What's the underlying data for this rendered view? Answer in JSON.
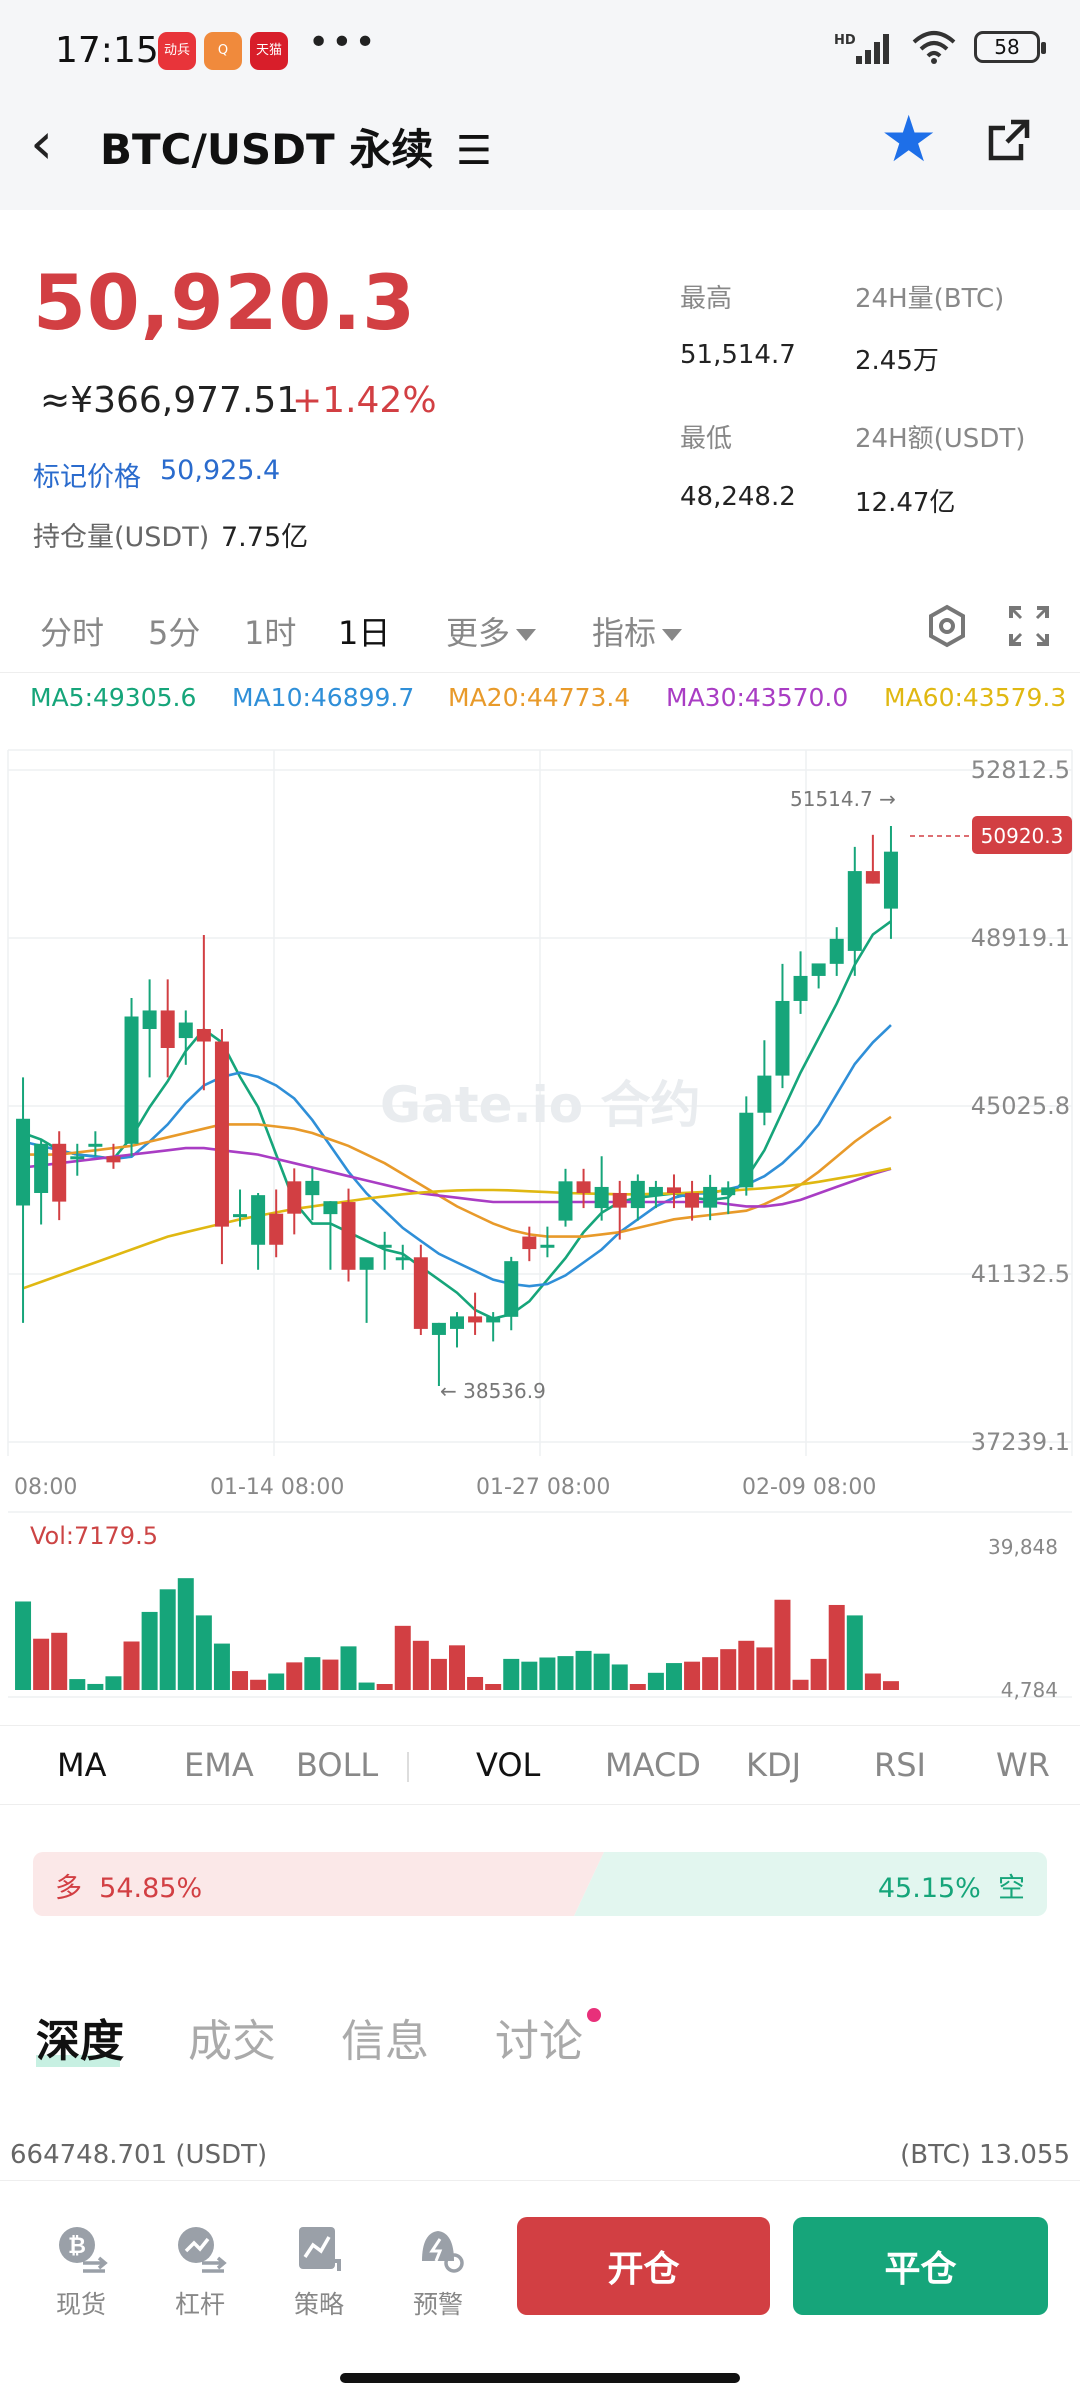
{
  "status_bar": {
    "time": "17:15",
    "apps": [
      {
        "label": "动兵",
        "color": "#e8343a"
      },
      {
        "label": "Q",
        "color": "#f08a3c"
      },
      {
        "label": "天猫",
        "color": "#d81e2a"
      }
    ],
    "more": "•••",
    "network": "HD",
    "battery": "58"
  },
  "header": {
    "title": "BTC/USDT 永续",
    "menu_glyph": "☰",
    "favorite": true
  },
  "ticker": {
    "last_price": "50,920.3",
    "cny_price": "≈¥366,977.51",
    "change_pct": "+1.42%",
    "mark_price_label": "标记价格",
    "mark_price": "50,925.4",
    "open_interest_label": "持仓量(USDT)",
    "open_interest": "7.75亿",
    "high_label": "最高",
    "high": "51,514.7",
    "low_label": "最低",
    "low": "48,248.2",
    "vol_btc_label": "24H量(BTC)",
    "vol_btc": "2.45万",
    "vol_usdt_label": "24H额(USDT)",
    "vol_usdt": "12.47亿"
  },
  "intervals": {
    "items": [
      "分时",
      "5分",
      "1时",
      "1日"
    ],
    "active": "1日",
    "more": "更多",
    "indicators": "指标"
  },
  "ma_values": [
    {
      "label": "MA5:49305.6",
      "color": "#16a57a"
    },
    {
      "label": "MA10:46899.7",
      "color": "#2f8fd8"
    },
    {
      "label": "MA20:44773.4",
      "color": "#e89a2a"
    },
    {
      "label": "MA30:43570.0",
      "color": "#a93dc4"
    },
    {
      "label": "MA60:43579.3",
      "color": "#e0b812"
    }
  ],
  "chart": {
    "watermark": "Gate.io 合约",
    "current_price_tag": "50920.3",
    "high_annotation": "51514.7 →",
    "low_annotation": "← 38536.9",
    "vol_label": "Vol:7179.5",
    "vol_max": "39,848",
    "vol_min": "4,784"
  },
  "chart_data": {
    "type": "candlestick",
    "ylim": [
      37239.1,
      52812.5
    ],
    "y_ticks": [
      "52812.5",
      "48919.1",
      "45025.8",
      "41132.5",
      "37239.1"
    ],
    "x_ticks": [
      "08:00",
      "01-14 08:00",
      "01-27 08:00",
      "02-09 08:00"
    ],
    "candles": [
      {
        "o": 42720,
        "h": 45690,
        "l": 40000,
        "c": 44730
      },
      {
        "o": 43010,
        "h": 44270,
        "l": 42280,
        "c": 44150
      },
      {
        "o": 44150,
        "h": 44440,
        "l": 42380,
        "c": 42810
      },
      {
        "o": 43860,
        "h": 44150,
        "l": 43410,
        "c": 43860
      },
      {
        "o": 44150,
        "h": 44440,
        "l": 43860,
        "c": 44150
      },
      {
        "o": 43860,
        "h": 44150,
        "l": 43570,
        "c": 43720
      },
      {
        "o": 44150,
        "h": 47530,
        "l": 43860,
        "c": 47100
      },
      {
        "o": 46810,
        "h": 47960,
        "l": 45690,
        "c": 47240
      },
      {
        "o": 47240,
        "h": 47960,
        "l": 45690,
        "c": 46370
      },
      {
        "o": 46600,
        "h": 47240,
        "l": 45980,
        "c": 46960
      },
      {
        "o": 46810,
        "h": 48990,
        "l": 45390,
        "c": 46520
      },
      {
        "o": 46520,
        "h": 46810,
        "l": 41360,
        "c": 42230
      },
      {
        "o": 42520,
        "h": 43090,
        "l": 42230,
        "c": 42520
      },
      {
        "o": 41810,
        "h": 43010,
        "l": 41230,
        "c": 42960
      },
      {
        "o": 42530,
        "h": 43090,
        "l": 41520,
        "c": 41810
      },
      {
        "o": 43280,
        "h": 43580,
        "l": 42050,
        "c": 42530
      },
      {
        "o": 42960,
        "h": 43580,
        "l": 42380,
        "c": 43290
      },
      {
        "o": 42520,
        "h": 42820,
        "l": 41230,
        "c": 42820
      },
      {
        "o": 42800,
        "h": 43110,
        "l": 40960,
        "c": 41230
      },
      {
        "o": 41230,
        "h": 41510,
        "l": 40000,
        "c": 41520
      },
      {
        "o": 41810,
        "h": 42110,
        "l": 41230,
        "c": 41810
      },
      {
        "o": 41520,
        "h": 41810,
        "l": 41230,
        "c": 41520
      },
      {
        "o": 41520,
        "h": 41810,
        "l": 39720,
        "c": 39860
      },
      {
        "o": 39720,
        "h": 40000,
        "l": 38537,
        "c": 40000
      },
      {
        "o": 39860,
        "h": 40250,
        "l": 39430,
        "c": 40150
      },
      {
        "o": 40150,
        "h": 40700,
        "l": 39720,
        "c": 40010
      },
      {
        "o": 40010,
        "h": 40250,
        "l": 39570,
        "c": 40140
      },
      {
        "o": 40140,
        "h": 41530,
        "l": 39830,
        "c": 41430
      },
      {
        "o": 42000,
        "h": 42230,
        "l": 41430,
        "c": 41710
      },
      {
        "o": 41810,
        "h": 42230,
        "l": 41520,
        "c": 41810
      },
      {
        "o": 42370,
        "h": 43570,
        "l": 42230,
        "c": 43280
      },
      {
        "o": 43280,
        "h": 43570,
        "l": 42660,
        "c": 43010
      },
      {
        "o": 42660,
        "h": 43860,
        "l": 42370,
        "c": 43150
      },
      {
        "o": 43010,
        "h": 43290,
        "l": 41930,
        "c": 42670
      },
      {
        "o": 42660,
        "h": 43440,
        "l": 42370,
        "c": 43290
      },
      {
        "o": 42950,
        "h": 43290,
        "l": 42660,
        "c": 43150
      },
      {
        "o": 43140,
        "h": 43440,
        "l": 42660,
        "c": 43010
      },
      {
        "o": 43010,
        "h": 43290,
        "l": 42370,
        "c": 42670
      },
      {
        "o": 42670,
        "h": 43430,
        "l": 42380,
        "c": 43150
      },
      {
        "o": 42960,
        "h": 43280,
        "l": 42520,
        "c": 43140
      },
      {
        "o": 43140,
        "h": 45250,
        "l": 42950,
        "c": 44870
      },
      {
        "o": 44870,
        "h": 46550,
        "l": 44580,
        "c": 45730
      },
      {
        "o": 45730,
        "h": 48320,
        "l": 45440,
        "c": 47460
      },
      {
        "o": 47460,
        "h": 48610,
        "l": 47160,
        "c": 48040
      },
      {
        "o": 48040,
        "h": 48320,
        "l": 47750,
        "c": 48330
      },
      {
        "o": 48320,
        "h": 49170,
        "l": 48040,
        "c": 48900
      },
      {
        "o": 48620,
        "h": 51030,
        "l": 48040,
        "c": 50470
      },
      {
        "o": 50470,
        "h": 51310,
        "l": 50180,
        "c": 50180
      },
      {
        "o": 49600,
        "h": 51515,
        "l": 48900,
        "c": 50920
      }
    ],
    "ma_series": [
      {
        "name": "MA5",
        "color": "#16a57a",
        "values": [
          44400,
          44250,
          44000,
          43900,
          43860,
          43800,
          44300,
          45000,
          45600,
          46300,
          46800,
          46500,
          45700,
          45000,
          43900,
          42800,
          42300,
          42300,
          42100,
          41900,
          41700,
          41600,
          41300,
          41000,
          40700,
          40300,
          40100,
          40200,
          40500,
          41000,
          41500,
          42100,
          42550,
          42800,
          42900,
          42950,
          43000,
          42900,
          42850,
          42900,
          43350,
          44000,
          44900,
          45800,
          46600,
          47400,
          48300,
          49000,
          49306
        ]
      },
      {
        "name": "MA10",
        "color": "#2f8fd8",
        "values": [
          44200,
          44100,
          44000,
          43900,
          43850,
          43800,
          43850,
          44200,
          44600,
          45100,
          45500,
          45700,
          45800,
          45700,
          45500,
          45200,
          44700,
          44100,
          43500,
          43000,
          42600,
          42200,
          41900,
          41600,
          41400,
          41200,
          41000,
          40900,
          40850,
          40900,
          41100,
          41400,
          41700,
          42100,
          42400,
          42700,
          42900,
          43000,
          43000,
          43100,
          43200,
          43400,
          43700,
          44100,
          44600,
          45300,
          46000,
          46500,
          46900
        ]
      },
      {
        "name": "MA20",
        "color": "#e89a2a",
        "values": [
          43900,
          43900,
          43900,
          43950,
          44000,
          44050,
          44100,
          44200,
          44300,
          44400,
          44500,
          44600,
          44600,
          44600,
          44550,
          44500,
          44400,
          44250,
          44100,
          43900,
          43700,
          43450,
          43200,
          42950,
          42700,
          42500,
          42300,
          42150,
          42050,
          42000,
          42000,
          42000,
          42050,
          42100,
          42200,
          42300,
          42400,
          42450,
          42500,
          42550,
          42600,
          42750,
          42950,
          43200,
          43500,
          43850,
          44200,
          44500,
          44773
        ]
      },
      {
        "name": "MA30",
        "color": "#a93dc4",
        "values": [
          43600,
          43650,
          43700,
          43750,
          43800,
          43850,
          43900,
          43950,
          44000,
          44050,
          44050,
          44000,
          43950,
          43900,
          43800,
          43700,
          43600,
          43500,
          43400,
          43300,
          43200,
          43100,
          43000,
          42950,
          42900,
          42850,
          42800,
          42800,
          42800,
          42800,
          42800,
          42800,
          42800,
          42800,
          42800,
          42800,
          42800,
          42800,
          42800,
          42750,
          42700,
          42700,
          42750,
          42850,
          43000,
          43150,
          43300,
          43450,
          43570
        ]
      },
      {
        "name": "MA60",
        "color": "#e0b812",
        "values": [
          40800,
          40950,
          41100,
          41250,
          41400,
          41550,
          41700,
          41850,
          42000,
          42100,
          42200,
          42300,
          42400,
          42480,
          42560,
          42640,
          42700,
          42760,
          42820,
          42880,
          42930,
          42980,
          43020,
          43050,
          43070,
          43080,
          43080,
          43070,
          43050,
          43030,
          43010,
          43000,
          42990,
          42980,
          42980,
          42990,
          43000,
          43020,
          43040,
          43060,
          43090,
          43120,
          43160,
          43210,
          43270,
          43340,
          43410,
          43490,
          43579
        ]
      }
    ],
    "volume": {
      "ylim": [
        4784,
        39848
      ],
      "values": [
        28500,
        17800,
        19500,
        6200,
        4800,
        7000,
        17000,
        25500,
        32000,
        35200,
        24500,
        16400,
        8500,
        6000,
        7800,
        11000,
        12500,
        11800,
        15600,
        5200,
        4784,
        21500,
        17200,
        12000,
        15900,
        6800,
        4784,
        12000,
        11200,
        12400,
        12800,
        14300,
        13500,
        10400,
        4784,
        8000,
        10800,
        11200,
        12500,
        14800,
        17200,
        15300,
        29000,
        6000,
        12000,
        27500,
        24500,
        7800,
        5600
      ],
      "up": [
        true,
        false,
        false,
        true,
        true,
        true,
        false,
        true,
        true,
        true,
        true,
        true,
        false,
        false,
        true,
        false,
        true,
        false,
        true,
        true,
        false,
        false,
        false,
        false,
        false,
        false,
        false,
        true,
        true,
        true,
        true,
        true,
        true,
        true,
        false,
        true,
        true,
        false,
        false,
        false,
        false,
        false,
        false,
        false,
        false,
        false,
        true,
        false,
        false
      ]
    }
  },
  "indicator_tabs": {
    "main": [
      "MA",
      "EMA",
      "BOLL"
    ],
    "sub": [
      "VOL",
      "MACD",
      "KDJ",
      "RSI",
      "WR"
    ],
    "active_main": "MA",
    "active_sub": "VOL"
  },
  "long_short": {
    "long_label": "多",
    "long_pct": "54.85%",
    "long_ratio": 0.5485,
    "short_label": "空",
    "short_pct": "45.15%"
  },
  "sections": {
    "tabs": [
      "深度",
      "成交",
      "信息",
      "讨论"
    ],
    "active": "深度"
  },
  "depth": {
    "left": "664748.701 (USDT)",
    "right": "(BTC) 13.055"
  },
  "bottom_nav": {
    "items": [
      {
        "label": "现货",
        "icon": "spot-icon"
      },
      {
        "label": "杠杆",
        "icon": "margin-icon"
      },
      {
        "label": "策略",
        "icon": "strategy-icon"
      },
      {
        "label": "预警",
        "icon": "alert-icon"
      }
    ],
    "open_button": "开仓",
    "close_button": "平仓"
  }
}
